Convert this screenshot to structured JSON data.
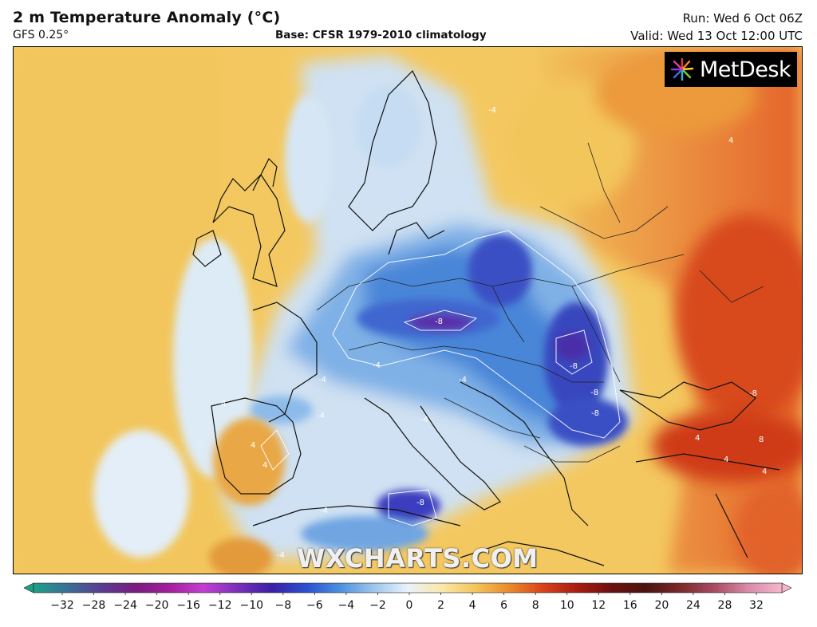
{
  "header": {
    "title": "2 m Temperature Anomaly (°C)",
    "model": "GFS 0.25°",
    "base": "Base: CFSR 1979-2010 climatology",
    "run": "Run: Wed 6 Oct 06Z",
    "valid": "Valid: Wed 13 Oct 12:00 UTC"
  },
  "logo": {
    "text": "MetDesk",
    "icon": "starburst-icon"
  },
  "watermark": "WXCHARTS.COM",
  "colorbar": {
    "ticks": [
      "−32",
      "−28",
      "−24",
      "−20",
      "−16",
      "−12",
      "−10",
      "−8",
      "−6",
      "−4",
      "−2",
      "0",
      "2",
      "4",
      "6",
      "8",
      "10",
      "12",
      "16",
      "20",
      "24",
      "28",
      "32"
    ],
    "colors": [
      "#1f9e89",
      "#3a6f95",
      "#5a3d8f",
      "#7a1c7f",
      "#a31f9e",
      "#c23fd0",
      "#7a2fb8",
      "#3b1fa6",
      "#2b4fd0",
      "#4b8fe0",
      "#9cc6ec",
      "#e9f2fb",
      "#fbe8a8",
      "#f4c45a",
      "#e98a2a",
      "#d8401a",
      "#a81c10",
      "#6b1010",
      "#4b1410",
      "#7a2a2a",
      "#a84a60",
      "#d88aa8",
      "#f4b8cc"
    ]
  },
  "contour_labels": [
    "-4",
    "-8",
    "-4",
    "-8",
    "-8",
    "-8",
    "-4",
    "-4",
    "-8",
    "4",
    "-4",
    "4",
    "-4",
    "-8",
    "4",
    "4",
    "8",
    "4",
    "4",
    "4",
    "-4",
    "-4"
  ]
}
